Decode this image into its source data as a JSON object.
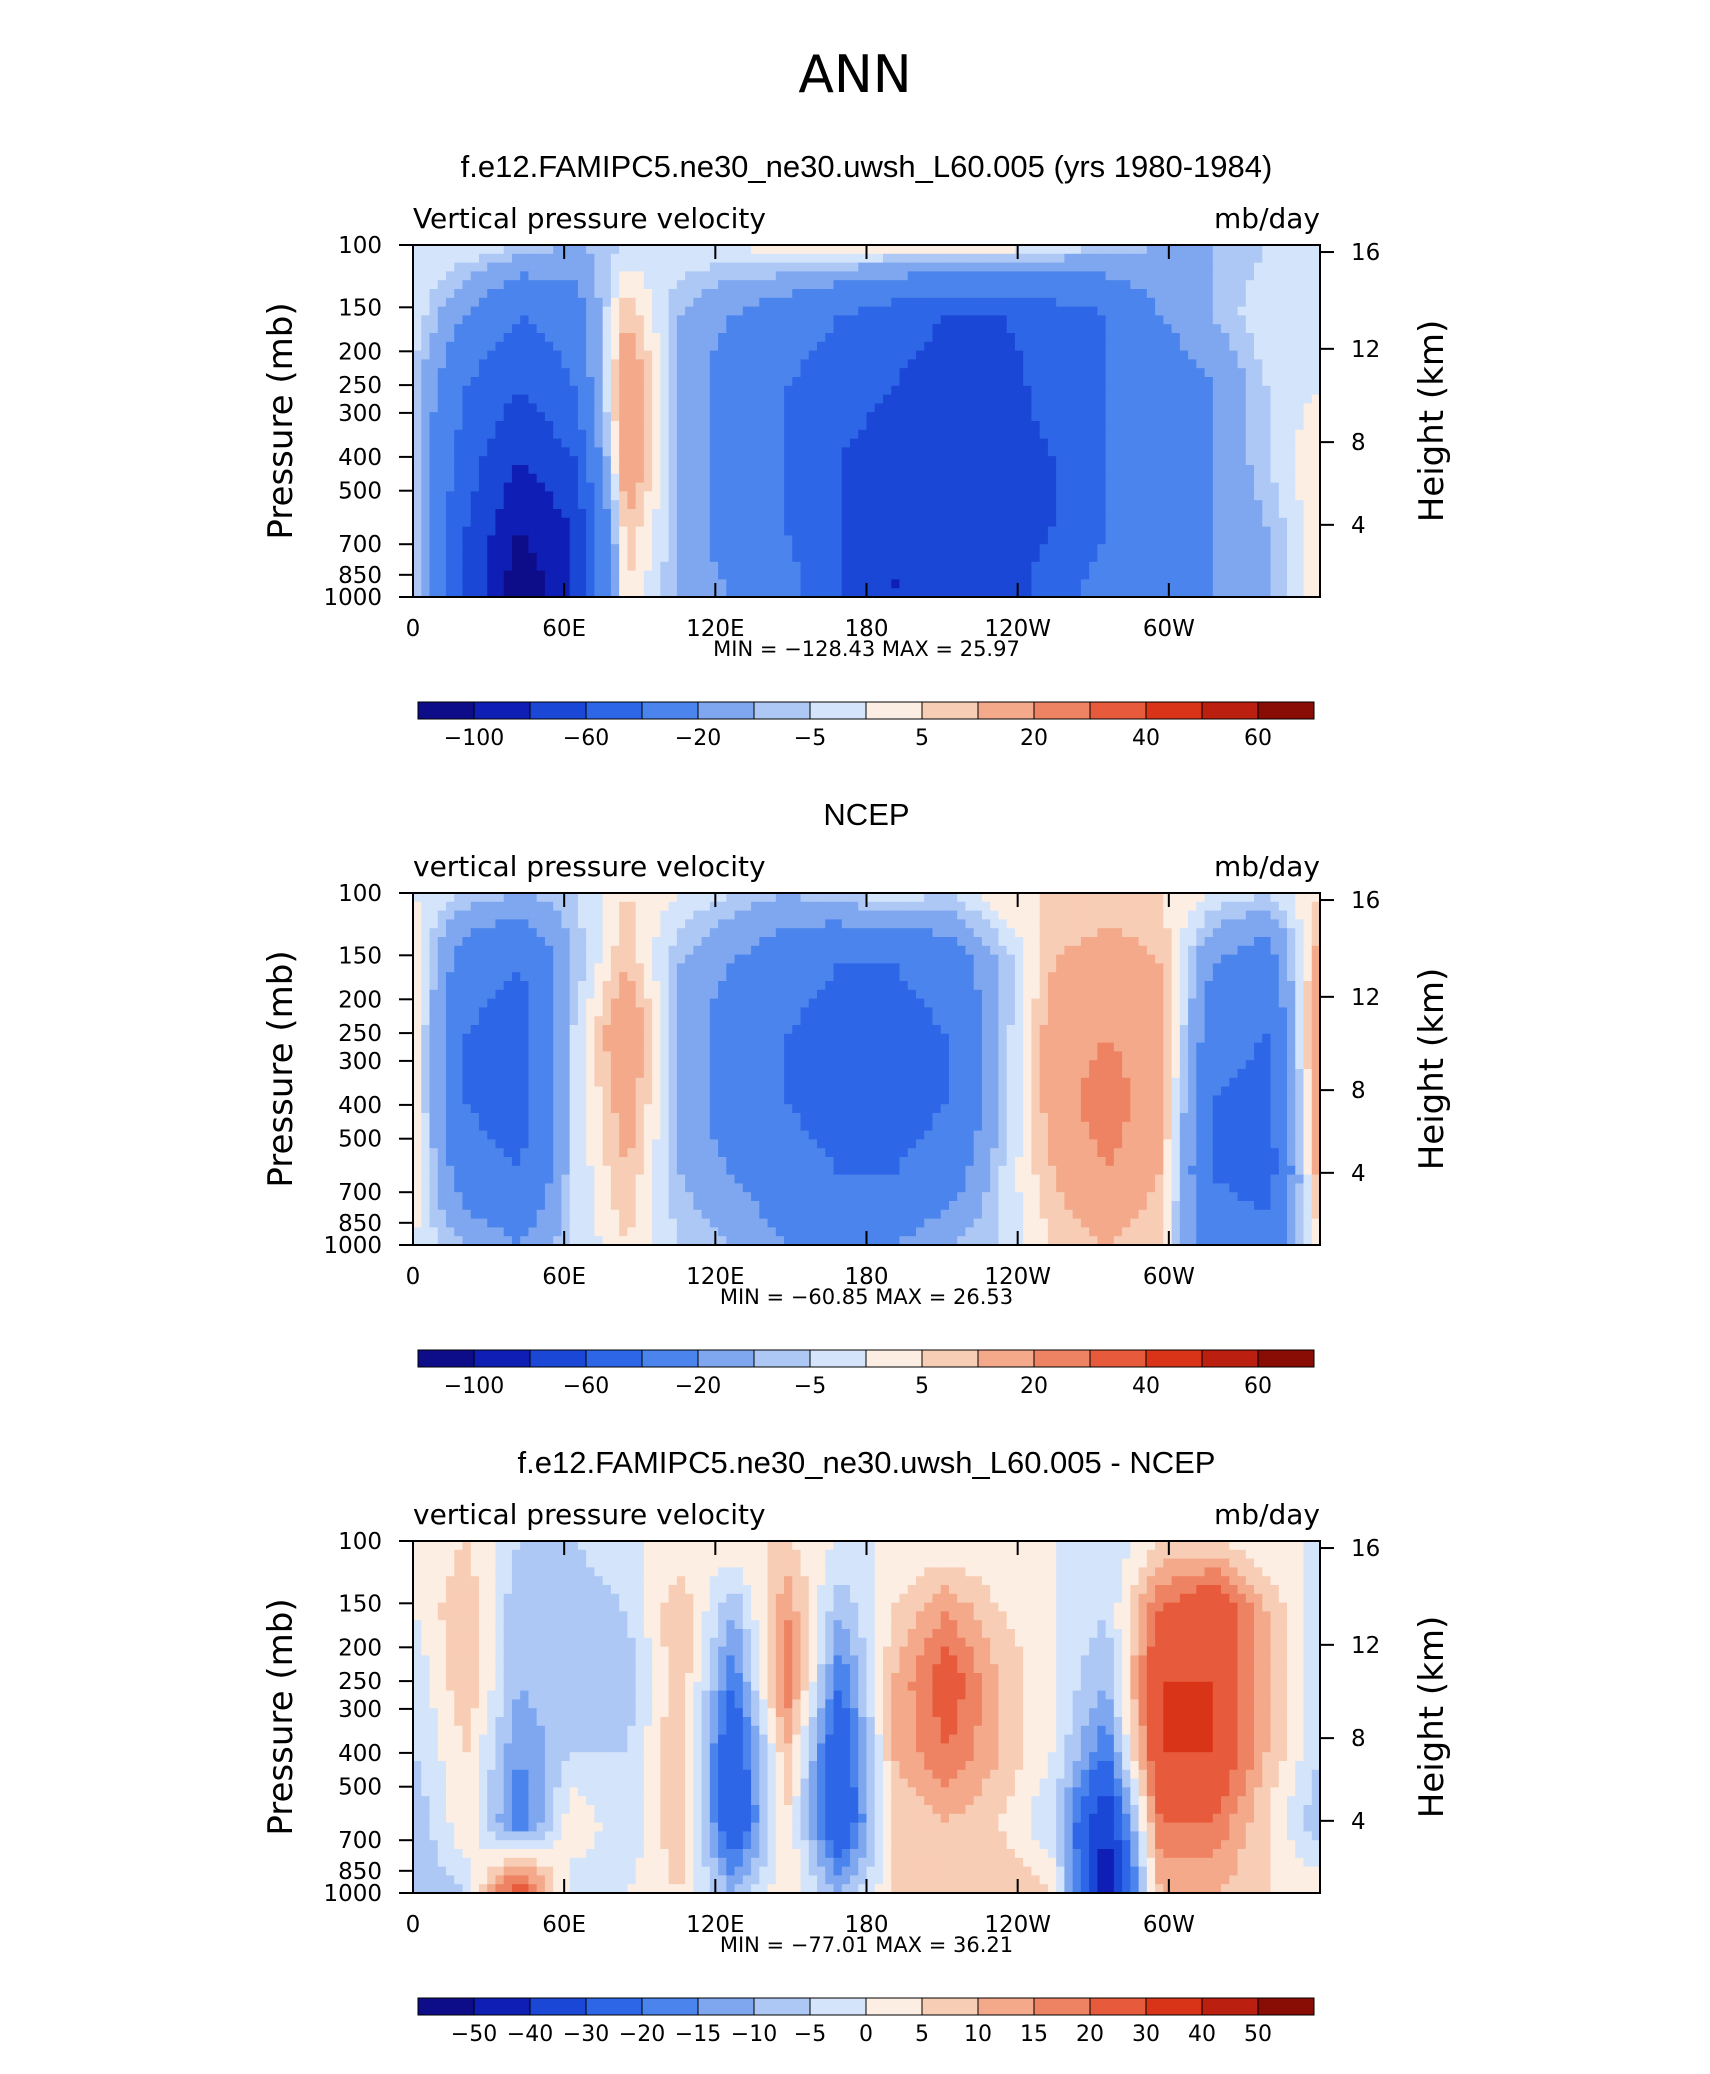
{
  "figure_title": "ANN",
  "chart_data": [
    {
      "type": "heatmap",
      "title": "f.e12.FAMIPC5.ne30_ne30.uwsh_L60.005 (yrs 1980-1984)",
      "left_string": "Vertical pressure velocity",
      "right_string": "mb/day",
      "xlabel": "",
      "ylabel": "Pressure (mb)",
      "y2label": "Height (km)",
      "x_ticks": [
        "0",
        "60E",
        "120E",
        "180",
        "120W",
        "60W"
      ],
      "y_ticks": [
        "100",
        "150",
        "200",
        "250",
        "300",
        "400",
        "500",
        "700",
        "850",
        "1000"
      ],
      "y2_ticks": [
        "16",
        "12",
        "8",
        "4"
      ],
      "minmax": "MIN = −128.43   MAX =   25.97",
      "colorbar_labels": [
        "−100",
        "−60",
        "−20",
        "−5",
        "5",
        "20",
        "40",
        "60"
      ],
      "levels": [
        -120,
        -100,
        -80,
        -60,
        -40,
        -20,
        -10,
        -5,
        0,
        5,
        10,
        20,
        30,
        40,
        50,
        60,
        70
      ],
      "field": [
        [
          0,
          0,
          -5,
          -10,
          -5,
          0,
          0,
          5,
          5,
          5,
          5,
          5,
          0,
          -5,
          -10,
          -10,
          -5,
          0
        ],
        [
          0,
          -20,
          -40,
          -30,
          10,
          -10,
          -20,
          -30,
          -40,
          -50,
          -60,
          -60,
          -50,
          -40,
          -20,
          -10,
          0,
          0
        ],
        [
          -5,
          -40,
          -60,
          -40,
          20,
          -10,
          -30,
          -40,
          -50,
          -60,
          -70,
          -70,
          -50,
          -40,
          -30,
          -20,
          -5,
          0
        ],
        [
          -5,
          -50,
          -80,
          -60,
          20,
          -10,
          -30,
          -40,
          -60,
          -70,
          -80,
          -70,
          -60,
          -40,
          -30,
          -20,
          -5,
          5
        ],
        [
          -5,
          -60,
          -100,
          -80,
          10,
          -10,
          -30,
          -40,
          -60,
          -80,
          -80,
          -70,
          -60,
          -40,
          -30,
          -20,
          -10,
          5
        ],
        [
          -5,
          -60,
          -120,
          -80,
          5,
          -10,
          -20,
          -30,
          -60,
          -80,
          -80,
          -70,
          -50,
          -30,
          -20,
          -20,
          -10,
          5
        ]
      ]
    },
    {
      "type": "heatmap",
      "title": "NCEP",
      "left_string": "vertical pressure velocity",
      "right_string": "mb/day",
      "xlabel": "",
      "ylabel": "Pressure (mb)",
      "y2label": "Height (km)",
      "x_ticks": [
        "0",
        "60E",
        "120E",
        "180",
        "120W",
        "60W"
      ],
      "y_ticks": [
        "100",
        "150",
        "200",
        "250",
        "300",
        "400",
        "500",
        "700",
        "850",
        "1000"
      ],
      "y2_ticks": [
        "16",
        "12",
        "8",
        "4"
      ],
      "minmax": "MIN =  −60.85   MAX =   26.53",
      "colorbar_labels": [
        "−100",
        "−60",
        "−20",
        "−5",
        "5",
        "20",
        "40",
        "60"
      ],
      "levels": [
        -120,
        -100,
        -80,
        -60,
        -40,
        -20,
        -10,
        -5,
        0,
        5,
        10,
        20,
        30,
        40,
        50,
        60,
        70
      ],
      "field": [
        [
          0,
          -5,
          -10,
          -5,
          5,
          0,
          -5,
          -10,
          -5,
          0,
          -5,
          5,
          5,
          5,
          5,
          0,
          -5,
          5
        ],
        [
          5,
          -30,
          -40,
          -10,
          10,
          -10,
          -20,
          -30,
          -40,
          -40,
          -30,
          -10,
          10,
          15,
          10,
          -20,
          -30,
          15
        ],
        [
          5,
          -40,
          -50,
          -5,
          20,
          -10,
          -30,
          -40,
          -50,
          -50,
          -40,
          -10,
          15,
          20,
          15,
          -30,
          -40,
          20
        ],
        [
          5,
          -40,
          -50,
          -5,
          15,
          -10,
          -30,
          -40,
          -50,
          -50,
          -40,
          -10,
          15,
          25,
          15,
          -40,
          -50,
          20
        ],
        [
          5,
          -30,
          -40,
          -5,
          10,
          -10,
          -20,
          -30,
          -40,
          -40,
          -30,
          -5,
          10,
          20,
          10,
          -40,
          -50,
          15
        ],
        [
          0,
          -10,
          -20,
          -5,
          5,
          -5,
          -10,
          -20,
          -20,
          -20,
          -10,
          -5,
          5,
          10,
          5,
          -30,
          -30,
          5
        ]
      ]
    },
    {
      "type": "heatmap",
      "title": "f.e12.FAMIPC5.ne30_ne30.uwsh_L60.005 - NCEP",
      "left_string": "vertical pressure velocity",
      "right_string": "mb/day",
      "xlabel": "",
      "ylabel": "Pressure (mb)",
      "y2label": "Height (km)",
      "x_ticks": [
        "0",
        "60E",
        "120E",
        "180",
        "120W",
        "60W"
      ],
      "y_ticks": [
        "100",
        "150",
        "200",
        "250",
        "300",
        "400",
        "500",
        "700",
        "850",
        "1000"
      ],
      "y2_ticks": [
        "16",
        "12",
        "8",
        "4"
      ],
      "minmax": "MIN =  −77.01   MAX =   36.21",
      "colorbar_labels": [
        "−50",
        "−40",
        "−30",
        "−20",
        "−15",
        "−10",
        "−5",
        "0",
        "5",
        "10",
        "15",
        "20",
        "30",
        "40",
        "50"
      ],
      "levels": [
        -60,
        -50,
        -40,
        -30,
        -20,
        -15,
        -10,
        -5,
        0,
        5,
        10,
        15,
        20,
        30,
        40,
        50,
        60
      ],
      "field": [
        [
          0,
          5,
          -5,
          -5,
          0,
          0,
          5,
          5,
          0,
          0,
          0,
          0,
          0,
          -5,
          5,
          5,
          0,
          0
        ],
        [
          0,
          10,
          -10,
          -10,
          -5,
          10,
          -10,
          15,
          -10,
          5,
          15,
          5,
          0,
          -5,
          20,
          30,
          10,
          -5
        ],
        [
          -5,
          10,
          -10,
          -5,
          -10,
          10,
          -20,
          20,
          -20,
          10,
          25,
          10,
          0,
          -10,
          30,
          30,
          10,
          -5
        ],
        [
          -5,
          5,
          -15,
          -5,
          -5,
          10,
          -30,
          10,
          -30,
          10,
          20,
          10,
          0,
          -20,
          30,
          30,
          10,
          -5
        ],
        [
          -10,
          5,
          -20,
          5,
          -5,
          10,
          -30,
          5,
          -30,
          5,
          10,
          5,
          -5,
          -40,
          20,
          20,
          5,
          -10
        ],
        [
          -10,
          -5,
          30,
          -5,
          0,
          5,
          -10,
          5,
          -10,
          5,
          5,
          10,
          5,
          -50,
          10,
          10,
          5,
          5
        ]
      ]
    }
  ]
}
